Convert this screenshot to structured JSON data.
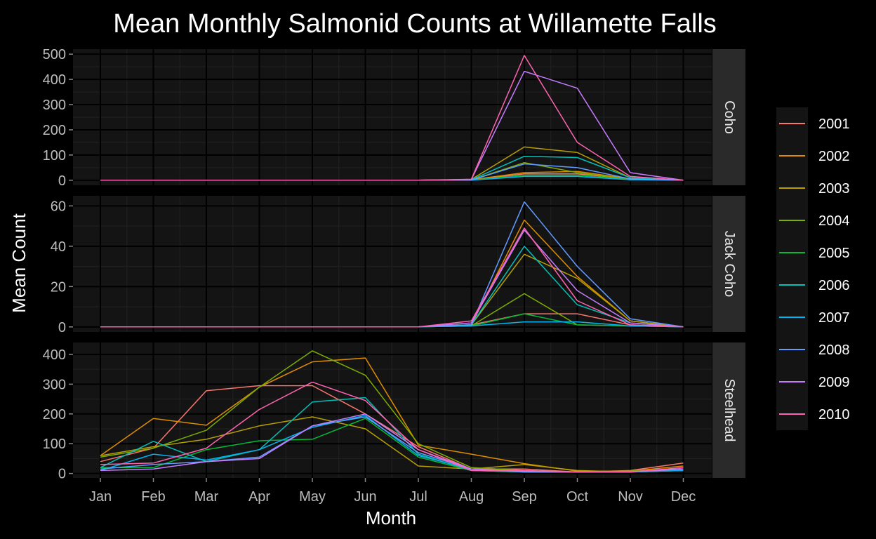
{
  "colors": {
    "background": "#000000",
    "panel": "#141414",
    "grid_major": "#000000",
    "grid_minor": "#222222",
    "strip": "#2a2a2a",
    "text": "#ffffff",
    "tick_text": "#bdbdbd",
    "series": [
      "#F8766D",
      "#DE8C00",
      "#B79F00",
      "#7CAE00",
      "#00BA38",
      "#00C0B8",
      "#00B4F0",
      "#619CFF",
      "#C77CFF",
      "#FF64B0"
    ]
  },
  "chart_data": {
    "type": "line",
    "title": "Mean Monthly Salmonid Counts at Willamette Falls",
    "xlabel": "Month",
    "ylabel": "Mean Count",
    "grid": true,
    "legend_position": "right",
    "categories": [
      "Jan",
      "Feb",
      "Mar",
      "Apr",
      "May",
      "Jun",
      "Jul",
      "Aug",
      "Sep",
      "Oct",
      "Nov",
      "Dec"
    ],
    "panels": [
      {
        "name": "Coho",
        "ylim": [
          -20,
          520
        ],
        "yticks": [
          0,
          100,
          200,
          300,
          400,
          500
        ],
        "series": [
          {
            "name": "2001",
            "values": [
              0,
              0,
              0,
              0,
              0,
              0,
              0,
              1,
              25,
              25,
              5,
              0
            ]
          },
          {
            "name": "2002",
            "values": [
              0,
              0,
              0,
              0,
              0,
              0,
              0,
              2,
              30,
              35,
              6,
              0
            ]
          },
          {
            "name": "2003",
            "values": [
              0,
              0,
              0,
              0,
              0,
              0,
              0,
              3,
              132,
              110,
              10,
              0
            ]
          },
          {
            "name": "2004",
            "values": [
              0,
              0,
              0,
              0,
              0,
              0,
              0,
              1,
              70,
              30,
              3,
              0
            ]
          },
          {
            "name": "2005",
            "values": [
              0,
              0,
              0,
              0,
              0,
              0,
              0,
              0,
              20,
              20,
              2,
              0
            ]
          },
          {
            "name": "2006",
            "values": [
              0,
              0,
              0,
              0,
              0,
              0,
              0,
              2,
              95,
              90,
              10,
              0
            ]
          },
          {
            "name": "2007",
            "values": [
              0,
              0,
              0,
              0,
              0,
              0,
              0,
              0,
              15,
              15,
              2,
              0
            ]
          },
          {
            "name": "2008",
            "values": [
              0,
              0,
              0,
              0,
              0,
              0,
              0,
              1,
              65,
              50,
              5,
              0
            ]
          },
          {
            "name": "2009",
            "values": [
              0,
              0,
              0,
              0,
              0,
              0,
              0,
              3,
              432,
              365,
              30,
              0
            ]
          },
          {
            "name": "2010",
            "values": [
              0,
              0,
              0,
              0,
              0,
              0,
              0,
              4,
              495,
              150,
              15,
              0
            ]
          }
        ]
      },
      {
        "name": "Jack Coho",
        "ylim": [
          -2.5,
          65
        ],
        "yticks": [
          0,
          20,
          40,
          60
        ],
        "series": [
          {
            "name": "2001",
            "values": [
              0,
              0,
              0,
              0,
              0,
              0,
              0,
              1,
              6.5,
              6.5,
              1,
              0
            ]
          },
          {
            "name": "2002",
            "values": [
              0,
              0,
              0,
              0,
              0,
              0,
              0,
              1,
              53,
              25,
              3,
              0
            ]
          },
          {
            "name": "2003",
            "values": [
              0,
              0,
              0,
              0,
              0,
              0,
              0,
              1,
              36,
              24,
              3,
              0
            ]
          },
          {
            "name": "2004",
            "values": [
              0,
              0,
              0,
              0,
              0,
              0,
              0,
              0.5,
              16.5,
              1,
              0.5,
              0
            ]
          },
          {
            "name": "2005",
            "values": [
              0,
              0,
              0,
              0,
              0,
              0,
              0,
              0.5,
              6.5,
              1,
              0.5,
              0
            ]
          },
          {
            "name": "2006",
            "values": [
              0,
              0,
              0,
              0,
              0,
              0,
              0,
              1,
              40,
              11,
              2,
              0
            ]
          },
          {
            "name": "2007",
            "values": [
              0,
              0,
              0,
              0,
              0,
              0,
              0,
              0.5,
              2.5,
              2.5,
              0.5,
              0
            ]
          },
          {
            "name": "2008",
            "values": [
              0,
              0,
              0,
              0,
              0,
              0,
              0,
              1,
              62,
              30,
              4,
              0
            ]
          },
          {
            "name": "2009",
            "values": [
              0,
              0,
              0,
              0,
              0,
              0,
              0,
              2,
              48,
              18,
              2,
              0
            ]
          },
          {
            "name": "2010",
            "values": [
              0,
              0,
              0,
              0,
              0,
              0,
              0,
              3,
              49,
              13,
              1,
              0
            ]
          }
        ]
      },
      {
        "name": "Steelhead",
        "ylim": [
          -15,
          440
        ],
        "yticks": [
          0,
          100,
          200,
          300,
          400
        ],
        "series": [
          {
            "name": "2001",
            "values": [
              40,
              85,
              278,
              295,
              295,
              200,
              90,
              15,
              15,
              5,
              10,
              35
            ]
          },
          {
            "name": "2002",
            "values": [
              60,
              185,
              162,
              290,
              375,
              388,
              95,
              65,
              33,
              8,
              8,
              25
            ]
          },
          {
            "name": "2003",
            "values": [
              60,
              90,
              115,
              160,
              190,
              150,
              25,
              15,
              30,
              10,
              5,
              15
            ]
          },
          {
            "name": "2004",
            "values": [
              55,
              85,
              145,
              290,
              412,
              330,
              100,
              20,
              10,
              5,
              8,
              15
            ]
          },
          {
            "name": "2005",
            "values": [
              20,
              20,
              80,
              110,
              115,
              185,
              55,
              10,
              5,
              5,
              5,
              10
            ]
          },
          {
            "name": "2006",
            "values": [
              20,
              108,
              40,
              80,
              240,
              255,
              65,
              10,
              5,
              5,
              5,
              10
            ]
          },
          {
            "name": "2007",
            "values": [
              10,
              65,
              45,
              80,
              155,
              195,
              60,
              15,
              5,
              5,
              5,
              10
            ]
          },
          {
            "name": "2008",
            "values": [
              15,
              30,
              40,
              55,
              160,
              190,
              70,
              15,
              5,
              5,
              5,
              15
            ]
          },
          {
            "name": "2009",
            "values": [
              10,
              15,
              40,
              50,
              160,
              200,
              80,
              15,
              8,
              5,
              5,
              15
            ]
          },
          {
            "name": "2010",
            "values": [
              30,
              35,
              85,
              215,
              307,
              245,
              80,
              10,
              10,
              5,
              5,
              20
            ]
          }
        ]
      }
    ]
  }
}
